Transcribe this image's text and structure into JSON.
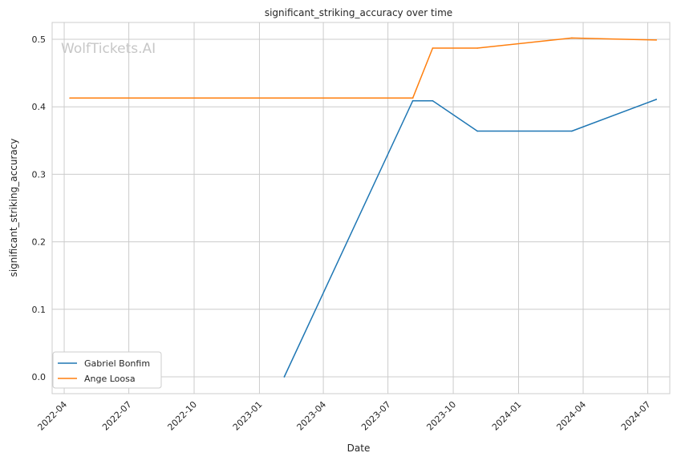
{
  "chart_data": {
    "type": "line",
    "title": "significant_striking_accuracy over time",
    "xlabel": "Date",
    "ylabel": "significant_striking_accuracy",
    "watermark": "WolfTickets.AI",
    "x_ticks": [
      "2022-04",
      "2022-07",
      "2022-10",
      "2023-01",
      "2023-04",
      "2023-07",
      "2023-10",
      "2024-01",
      "2024-04",
      "2024-07"
    ],
    "y_ticks": [
      "0.0",
      "0.1",
      "0.2",
      "0.3",
      "0.4",
      "0.5"
    ],
    "ylim": [
      -0.025,
      0.525
    ],
    "xlim": [
      "2022-03-15",
      "2024-08-01"
    ],
    "grid": true,
    "legend_position": "lower-left",
    "series": [
      {
        "name": "Gabriel Bonfim",
        "color": "#1f77b4",
        "points": [
          [
            "2023-02-05",
            0.0
          ],
          [
            "2023-08-05",
            0.409
          ],
          [
            "2023-09-02",
            0.409
          ],
          [
            "2023-11-04",
            0.364
          ],
          [
            "2024-03-16",
            0.364
          ],
          [
            "2024-07-13",
            0.411
          ]
        ]
      },
      {
        "name": "Ange Loosa",
        "color": "#ff7f0e",
        "points": [
          [
            "2022-04-09",
            0.413
          ],
          [
            "2023-08-05",
            0.413
          ],
          [
            "2023-09-02",
            0.487
          ],
          [
            "2023-11-04",
            0.487
          ],
          [
            "2024-03-16",
            0.502
          ],
          [
            "2024-07-13",
            0.499
          ]
        ]
      }
    ]
  }
}
